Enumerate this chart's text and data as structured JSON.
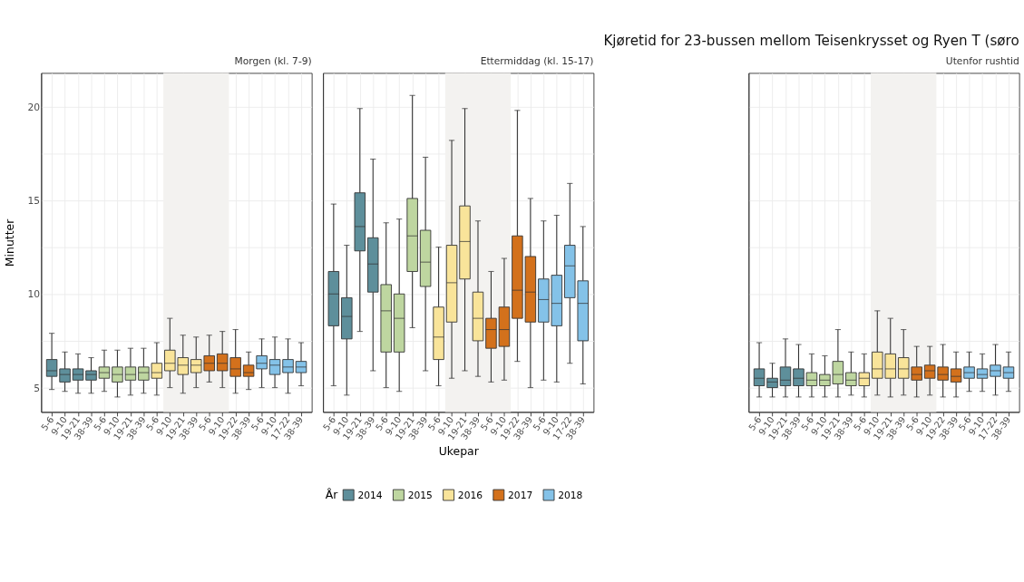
{
  "chart_data": [
    {
      "type": "box",
      "subtitle": "Morgen (kl. 7-9)",
      "ylabel": "Minutter",
      "legend_title": "År",
      "legend": "bottom",
      "grid": true,
      "categories": [
        "5-6",
        "9-10",
        "19-21",
        "38-39",
        "5-6",
        "9-10",
        "19-21",
        "38-39",
        "5-6",
        "9-10",
        "19-21",
        "38-39",
        "5-6",
        "9-10",
        "19-22",
        "38-39",
        "5-6",
        "9-10",
        "17-22",
        "38-39"
      ],
      "ylim": [
        3.7,
        21.8
      ],
      "yticks": [
        5,
        {
          "value": 7.5,
          "label": null
        },
        10,
        {
          "value": 12.5,
          "label": null
        },
        15,
        {
          "value": 17.5,
          "label": null
        },
        20
      ],
      "series": [
        {
          "name": "2014",
          "color": "#5e8f9b",
          "boxes": [
            {
              "low": 4.9,
              "q1": 5.6,
              "median": 5.9,
              "q3": 6.5,
              "high": 7.9
            },
            {
              "low": 4.8,
              "q1": 5.3,
              "median": 5.7,
              "q3": 6.0,
              "high": 6.9
            },
            {
              "low": 4.7,
              "q1": 5.4,
              "median": 5.7,
              "q3": 6.0,
              "high": 6.8
            },
            {
              "low": 4.7,
              "q1": 5.4,
              "median": 5.7,
              "q3": 5.9,
              "high": 6.6
            },
            null,
            null,
            null,
            null,
            null,
            null,
            null,
            null,
            null,
            null,
            null,
            null,
            null,
            null,
            null,
            null
          ]
        },
        {
          "name": "2015",
          "color": "#bed6a0",
          "boxes": [
            null,
            null,
            null,
            null,
            {
              "low": 4.8,
              "q1": 5.5,
              "median": 5.8,
              "q3": 6.1,
              "high": 7.0
            },
            {
              "low": 4.5,
              "q1": 5.3,
              "median": 5.7,
              "q3": 6.1,
              "high": 7.0
            },
            {
              "low": 4.6,
              "q1": 5.4,
              "median": 5.7,
              "q3": 6.1,
              "high": 7.1
            },
            {
              "low": 4.7,
              "q1": 5.4,
              "median": 5.8,
              "q3": 6.1,
              "high": 7.1
            },
            null,
            null,
            null,
            null,
            null,
            null,
            null,
            null,
            null,
            null,
            null,
            null
          ]
        },
        {
          "name": "2016",
          "color": "#f9e49a",
          "boxes": [
            null,
            null,
            null,
            null,
            null,
            null,
            null,
            null,
            {
              "low": 4.6,
              "q1": 5.5,
              "median": 5.8,
              "q3": 6.3,
              "high": 7.4
            },
            {
              "low": 5.0,
              "q1": 5.9,
              "median": 6.3,
              "q3": 7.0,
              "high": 8.7
            },
            {
              "low": 4.7,
              "q1": 5.7,
              "median": 6.2,
              "q3": 6.6,
              "high": 7.8
            },
            {
              "low": 5.0,
              "q1": 5.8,
              "median": 6.2,
              "q3": 6.5,
              "high": 7.7
            },
            null,
            null,
            null,
            null,
            null,
            null,
            null,
            null
          ]
        },
        {
          "name": "2017",
          "color": "#d3711c",
          "boxes": [
            null,
            null,
            null,
            null,
            null,
            null,
            null,
            null,
            null,
            null,
            null,
            null,
            {
              "low": 5.3,
              "q1": 5.9,
              "median": 6.3,
              "q3": 6.7,
              "high": 7.8
            },
            {
              "low": 5.0,
              "q1": 5.9,
              "median": 6.3,
              "q3": 6.8,
              "high": 8.0
            },
            {
              "low": 4.7,
              "q1": 5.6,
              "median": 6.0,
              "q3": 6.6,
              "high": 8.1
            },
            {
              "low": 4.9,
              "q1": 5.6,
              "median": 5.8,
              "q3": 6.2,
              "high": 6.9
            },
            null,
            null,
            null,
            null
          ]
        },
        {
          "name": "2018",
          "color": "#84c2e8",
          "boxes": [
            null,
            null,
            null,
            null,
            null,
            null,
            null,
            null,
            null,
            null,
            null,
            null,
            null,
            null,
            null,
            null,
            {
              "low": 5.0,
              "q1": 6.0,
              "median": 6.3,
              "q3": 6.7,
              "high": 7.6
            },
            {
              "low": 5.0,
              "q1": 5.7,
              "median": 6.2,
              "q3": 6.5,
              "high": 7.7
            },
            {
              "low": 4.7,
              "q1": 5.8,
              "median": 6.1,
              "q3": 6.5,
              "high": 7.6
            },
            {
              "low": 5.1,
              "q1": 5.8,
              "median": 6.1,
              "q3": 6.4,
              "high": 7.4
            }
          ]
        }
      ]
    },
    {
      "type": "box",
      "subtitle": "Ettermiddag (kl. 15-17)",
      "xlabel": "Ukepar",
      "grid": true,
      "tick_labels": "x",
      "categories": [
        "5-6",
        "9-10",
        "19-21",
        "38-39",
        "5-6",
        "9-10",
        "19-21",
        "38-39",
        "5-6",
        "9-10",
        "19-21",
        "38-39",
        "5-6",
        "9-10",
        "19-22",
        "38-39",
        "5-6",
        "9-10",
        "17-22",
        "38-39"
      ],
      "ylim": [
        3.7,
        21.8
      ],
      "yticks": [
        5,
        {
          "value": 7.5,
          "label": null
        },
        10,
        {
          "value": 12.5,
          "label": null
        },
        15,
        {
          "value": 17.5,
          "label": null
        },
        20
      ],
      "series": [
        {
          "name": "2014",
          "color": "#5e8f9b",
          "boxes": [
            {
              "low": 5.1,
              "q1": 8.3,
              "median": 10.0,
              "q3": 11.2,
              "high": 14.8
            },
            {
              "low": 4.6,
              "q1": 7.6,
              "median": 8.8,
              "q3": 9.8,
              "high": 12.6
            },
            {
              "low": 8.0,
              "q1": 12.3,
              "median": 13.6,
              "q3": 15.4,
              "high": 19.9
            },
            {
              "low": 5.9,
              "q1": 10.1,
              "median": 11.6,
              "q3": 13.0,
              "high": 17.2
            },
            null,
            null,
            null,
            null,
            null,
            null,
            null,
            null,
            null,
            null,
            null,
            null,
            null,
            null,
            null,
            null
          ]
        },
        {
          "name": "2015",
          "color": "#bed6a0",
          "boxes": [
            null,
            null,
            null,
            null,
            {
              "low": 5.0,
              "q1": 6.9,
              "median": 9.1,
              "q3": 10.5,
              "high": 13.8
            },
            {
              "low": 4.8,
              "q1": 6.9,
              "median": 8.7,
              "q3": 10.0,
              "high": 14.0
            },
            {
              "low": 8.2,
              "q1": 11.2,
              "median": 13.1,
              "q3": 15.1,
              "high": 20.6
            },
            {
              "low": 5.9,
              "q1": 10.4,
              "median": 11.7,
              "q3": 13.4,
              "high": 17.3
            },
            null,
            null,
            null,
            null,
            null,
            null,
            null,
            null,
            null,
            null,
            null,
            null
          ]
        },
        {
          "name": "2016",
          "color": "#f9e49a",
          "boxes": [
            null,
            null,
            null,
            null,
            null,
            null,
            null,
            null,
            {
              "low": 5.1,
              "q1": 6.5,
              "median": 7.7,
              "q3": 9.3,
              "high": 12.5
            },
            {
              "low": 5.5,
              "q1": 8.5,
              "median": 10.6,
              "q3": 12.6,
              "high": 18.2
            },
            {
              "low": 5.9,
              "q1": 10.8,
              "median": 12.8,
              "q3": 14.7,
              "high": 19.9
            },
            {
              "low": 5.6,
              "q1": 7.5,
              "median": 8.7,
              "q3": 10.1,
              "high": 13.9
            },
            null,
            null,
            null,
            null,
            null,
            null,
            null,
            null
          ]
        },
        {
          "name": "2017",
          "color": "#d3711c",
          "boxes": [
            null,
            null,
            null,
            null,
            null,
            null,
            null,
            null,
            null,
            null,
            null,
            null,
            {
              "low": 5.3,
              "q1": 7.1,
              "median": 8.1,
              "q3": 8.7,
              "high": 11.2
            },
            {
              "low": 5.4,
              "q1": 7.2,
              "median": 8.1,
              "q3": 9.3,
              "high": 11.9
            },
            {
              "low": 6.4,
              "q1": 8.7,
              "median": 10.2,
              "q3": 13.1,
              "high": 19.8
            },
            {
              "low": 5.0,
              "q1": 8.5,
              "median": 10.1,
              "q3": 12.0,
              "high": 15.1
            },
            null,
            null,
            null,
            null
          ]
        },
        {
          "name": "2018",
          "color": "#84c2e8",
          "boxes": [
            null,
            null,
            null,
            null,
            null,
            null,
            null,
            null,
            null,
            null,
            null,
            null,
            null,
            null,
            null,
            null,
            {
              "low": 5.4,
              "q1": 8.5,
              "median": 9.7,
              "q3": 10.8,
              "high": 13.9
            },
            {
              "low": 5.3,
              "q1": 8.3,
              "median": 9.5,
              "q3": 11.0,
              "high": 14.2
            },
            {
              "low": 6.3,
              "q1": 9.8,
              "median": 11.5,
              "q3": 12.6,
              "high": 15.9
            },
            {
              "low": 5.2,
              "q1": 7.5,
              "median": 9.5,
              "q3": 10.7,
              "high": 13.6
            }
          ]
        }
      ]
    },
    {
      "type": "box",
      "title": "Kjøretid for 23-bussen mellom Teisenkrysset og Ryen T (søro",
      "subtitle": "Utenfor rushtid",
      "grid": true,
      "tick_labels": "x",
      "categories": [
        "5-6",
        "9-10",
        "19-21",
        "38-39",
        "5-6",
        "9-10",
        "19-21",
        "38-39",
        "5-6",
        "9-10",
        "19-21",
        "38-39",
        "5-6",
        "9-10",
        "19-22",
        "38-39",
        "5-6",
        "9-10",
        "17-22",
        "38-39"
      ],
      "ylim": [
        3.7,
        21.8
      ],
      "yticks": [
        5,
        {
          "value": 7.5,
          "label": null
        },
        10,
        {
          "value": 12.5,
          "label": null
        },
        15,
        {
          "value": 17.5,
          "label": null
        },
        20
      ],
      "series": [
        {
          "name": "2014",
          "color": "#5e8f9b",
          "boxes": [
            {
              "low": 4.5,
              "q1": 5.1,
              "median": 5.5,
              "q3": 6.0,
              "high": 7.4
            },
            {
              "low": 4.5,
              "q1": 5.0,
              "median": 5.3,
              "q3": 5.5,
              "high": 6.3
            },
            {
              "low": 4.5,
              "q1": 5.1,
              "median": 5.4,
              "q3": 6.1,
              "high": 7.6
            },
            {
              "low": 4.5,
              "q1": 5.1,
              "median": 5.5,
              "q3": 6.0,
              "high": 7.3
            },
            null,
            null,
            null,
            null,
            null,
            null,
            null,
            null,
            null,
            null,
            null,
            null,
            null,
            null,
            null,
            null
          ]
        },
        {
          "name": "2015",
          "color": "#bed6a0",
          "boxes": [
            null,
            null,
            null,
            null,
            {
              "low": 4.5,
              "q1": 5.1,
              "median": 5.4,
              "q3": 5.8,
              "high": 6.8
            },
            {
              "low": 4.5,
              "q1": 5.1,
              "median": 5.4,
              "q3": 5.7,
              "high": 6.7
            },
            {
              "low": 4.5,
              "q1": 5.2,
              "median": 5.7,
              "q3": 6.4,
              "high": 8.1
            },
            {
              "low": 4.6,
              "q1": 5.1,
              "median": 5.4,
              "q3": 5.8,
              "high": 6.9
            },
            null,
            null,
            null,
            null,
            null,
            null,
            null,
            null,
            null,
            null,
            null,
            null
          ]
        },
        {
          "name": "2016",
          "color": "#f9e49a",
          "boxes": [
            null,
            null,
            null,
            null,
            null,
            null,
            null,
            null,
            {
              "low": 4.5,
              "q1": 5.1,
              "median": 5.5,
              "q3": 5.8,
              "high": 6.8
            },
            {
              "low": 4.6,
              "q1": 5.5,
              "median": 6.0,
              "q3": 6.9,
              "high": 9.1
            },
            {
              "low": 4.5,
              "q1": 5.5,
              "median": 6.0,
              "q3": 6.8,
              "high": 8.7
            },
            {
              "low": 4.6,
              "q1": 5.5,
              "median": 6.0,
              "q3": 6.6,
              "high": 8.1
            },
            null,
            null,
            null,
            null,
            null,
            null,
            null,
            null
          ]
        },
        {
          "name": "2017",
          "color": "#d3711c",
          "boxes": [
            null,
            null,
            null,
            null,
            null,
            null,
            null,
            null,
            null,
            null,
            null,
            null,
            {
              "low": 4.5,
              "q1": 5.4,
              "median": 5.7,
              "q3": 6.1,
              "high": 7.2
            },
            {
              "low": 4.6,
              "q1": 5.5,
              "median": 5.9,
              "q3": 6.2,
              "high": 7.2
            },
            {
              "low": 4.5,
              "q1": 5.4,
              "median": 5.7,
              "q3": 6.1,
              "high": 7.3
            },
            {
              "low": 4.5,
              "q1": 5.3,
              "median": 5.6,
              "q3": 6.0,
              "high": 6.9
            },
            null,
            null,
            null,
            null
          ]
        },
        {
          "name": "2018",
          "color": "#84c2e8",
          "boxes": [
            null,
            null,
            null,
            null,
            null,
            null,
            null,
            null,
            null,
            null,
            null,
            null,
            null,
            null,
            null,
            null,
            {
              "low": 4.8,
              "q1": 5.5,
              "median": 5.8,
              "q3": 6.1,
              "high": 6.9
            },
            {
              "low": 4.8,
              "q1": 5.5,
              "median": 5.7,
              "q3": 6.0,
              "high": 6.8
            },
            {
              "low": 4.6,
              "q1": 5.6,
              "median": 5.9,
              "q3": 6.2,
              "high": 7.3
            },
            {
              "low": 4.8,
              "q1": 5.5,
              "median": 5.8,
              "q3": 6.1,
              "high": 6.9
            }
          ]
        }
      ]
    }
  ]
}
